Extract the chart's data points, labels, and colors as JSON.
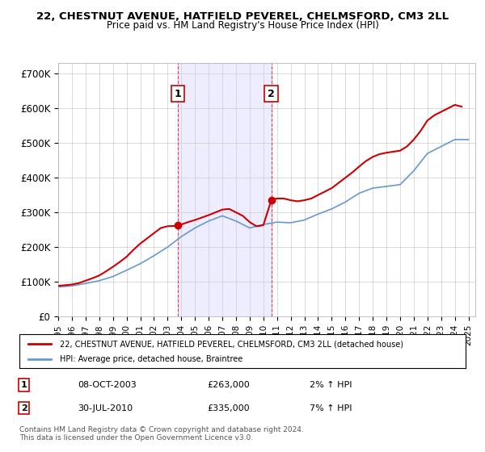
{
  "title": "22, CHESTNUT AVENUE, HATFIELD PEVEREL, CHELMSFORD, CM3 2LL",
  "subtitle": "Price paid vs. HM Land Registry's House Price Index (HPI)",
  "ylabel_ticks": [
    "£0",
    "£100K",
    "£200K",
    "£300K",
    "£400K",
    "£500K",
    "£600K",
    "£700K"
  ],
  "ytick_vals": [
    0,
    100000,
    200000,
    300000,
    400000,
    500000,
    600000,
    700000
  ],
  "ylim": [
    0,
    730000
  ],
  "xlim_start": 1995.0,
  "xlim_end": 2025.5,
  "sale1_x": 2003.77,
  "sale1_y": 263000,
  "sale2_x": 2010.58,
  "sale2_y": 335000,
  "sale1_label": "1",
  "sale2_label": "2",
  "sale1_date": "08-OCT-2003",
  "sale1_price": "£263,000",
  "sale1_hpi": "2% ↑ HPI",
  "sale2_date": "30-JUL-2010",
  "sale2_price": "£335,000",
  "sale2_hpi": "7% ↑ HPI",
  "line_color_red": "#cc0000",
  "line_color_blue": "#6699cc",
  "background_color": "#ffffff",
  "grid_color": "#cccccc",
  "legend_line1": "22, CHESTNUT AVENUE, HATFIELD PEVEREL, CHELMSFORD, CM3 2LL (detached house)",
  "legend_line2": "HPI: Average price, detached house, Braintree",
  "footnote": "Contains HM Land Registry data © Crown copyright and database right 2024.\nThis data is licensed under the Open Government Licence v3.0.",
  "x_years": [
    1995,
    1996,
    1997,
    1998,
    1999,
    2000,
    2001,
    2002,
    2003,
    2004,
    2005,
    2006,
    2007,
    2008,
    2009,
    2010,
    2011,
    2012,
    2013,
    2014,
    2015,
    2016,
    2017,
    2018,
    2019,
    2020,
    2021,
    2022,
    2023,
    2024,
    2025
  ],
  "hpi_values": [
    85000,
    88000,
    95000,
    103000,
    115000,
    133000,
    152000,
    175000,
    200000,
    230000,
    255000,
    275000,
    290000,
    275000,
    255000,
    265000,
    272000,
    270000,
    278000,
    295000,
    310000,
    330000,
    355000,
    370000,
    375000,
    380000,
    420000,
    470000,
    490000,
    510000,
    510000
  ],
  "price_paid_x": [
    1995.0,
    1995.5,
    1996.0,
    1996.5,
    1997.0,
    1997.5,
    1998.0,
    1998.5,
    1999.0,
    1999.5,
    2000.0,
    2000.5,
    2001.0,
    2001.5,
    2002.0,
    2002.5,
    2003.0,
    2003.5,
    2003.77,
    2004.0,
    2004.5,
    2005.0,
    2005.5,
    2006.0,
    2006.5,
    2007.0,
    2007.5,
    2008.0,
    2008.5,
    2009.0,
    2009.5,
    2010.0,
    2010.58,
    2011.0,
    2011.5,
    2012.0,
    2012.5,
    2013.0,
    2013.5,
    2014.0,
    2014.5,
    2015.0,
    2015.5,
    2016.0,
    2016.5,
    2017.0,
    2017.5,
    2018.0,
    2018.5,
    2019.0,
    2019.5,
    2020.0,
    2020.5,
    2021.0,
    2021.5,
    2022.0,
    2022.5,
    2023.0,
    2023.5,
    2024.0,
    2024.5
  ],
  "price_paid_y": [
    88000,
    90000,
    92000,
    96000,
    103000,
    110000,
    118000,
    130000,
    143000,
    157000,
    172000,
    192000,
    210000,
    225000,
    240000,
    255000,
    260000,
    261000,
    263000,
    265000,
    272000,
    278000,
    285000,
    292000,
    300000,
    308000,
    310000,
    300000,
    290000,
    272000,
    260000,
    263000,
    335000,
    340000,
    340000,
    335000,
    332000,
    335000,
    340000,
    350000,
    360000,
    370000,
    385000,
    400000,
    415000,
    432000,
    448000,
    460000,
    468000,
    472000,
    475000,
    478000,
    490000,
    510000,
    535000,
    565000,
    580000,
    590000,
    600000,
    610000,
    605000
  ]
}
